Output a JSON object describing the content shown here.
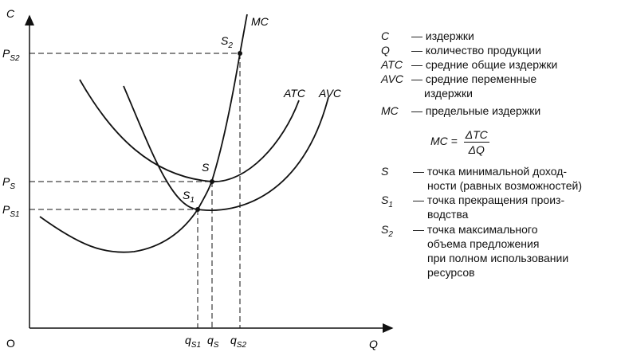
{
  "axes": {
    "y_label": "C",
    "x_label": "Q",
    "origin": "O"
  },
  "y_ticks": [
    {
      "main": "P",
      "sub": "S2"
    },
    {
      "main": "P",
      "sub": "S"
    },
    {
      "main": "P",
      "sub": "S1"
    }
  ],
  "x_ticks": [
    {
      "main": "q",
      "sub": "S1"
    },
    {
      "main": "q",
      "sub": "S"
    },
    {
      "main": "q",
      "sub": "S2"
    }
  ],
  "curves": {
    "mc": "MC",
    "atc": "ATC",
    "avc": "AVC"
  },
  "points": {
    "s2": {
      "main": "S",
      "sub": "2"
    },
    "s": {
      "main": "S",
      "sub": ""
    },
    "s1": {
      "main": "S",
      "sub": "1"
    }
  },
  "legend": [
    {
      "sym": "C",
      "dash": "—",
      "text": "издержки"
    },
    {
      "sym": "Q",
      "dash": "—",
      "text": "количество продукции"
    },
    {
      "sym": "ATC",
      "dash": "—",
      "text": "средние общие издержки"
    },
    {
      "sym": "AVC",
      "dash": "—",
      "text": "средние переменные"
    },
    {
      "sym": "",
      "dash": "",
      "text": "издержки"
    },
    {
      "sym": "MC",
      "dash": "—",
      "text": "предельные издержки"
    }
  ],
  "formula": {
    "lhs": "MC =",
    "num": "ΔTC",
    "den": "ΔQ"
  },
  "point_legend": [
    {
      "sym": "S",
      "sub": "",
      "dash": "—",
      "lines": [
        "точка минимальной доход-",
        "ности (равных возможностей)"
      ]
    },
    {
      "sym": "S",
      "sub": "1",
      "dash": "—",
      "lines": [
        "точка прекращения произ-",
        "водства"
      ]
    },
    {
      "sym": "S",
      "sub": "2",
      "dash": "—",
      "lines": [
        "точка максимального",
        "объема предложения",
        "при полном использовании",
        "ресурсов"
      ]
    }
  ]
}
